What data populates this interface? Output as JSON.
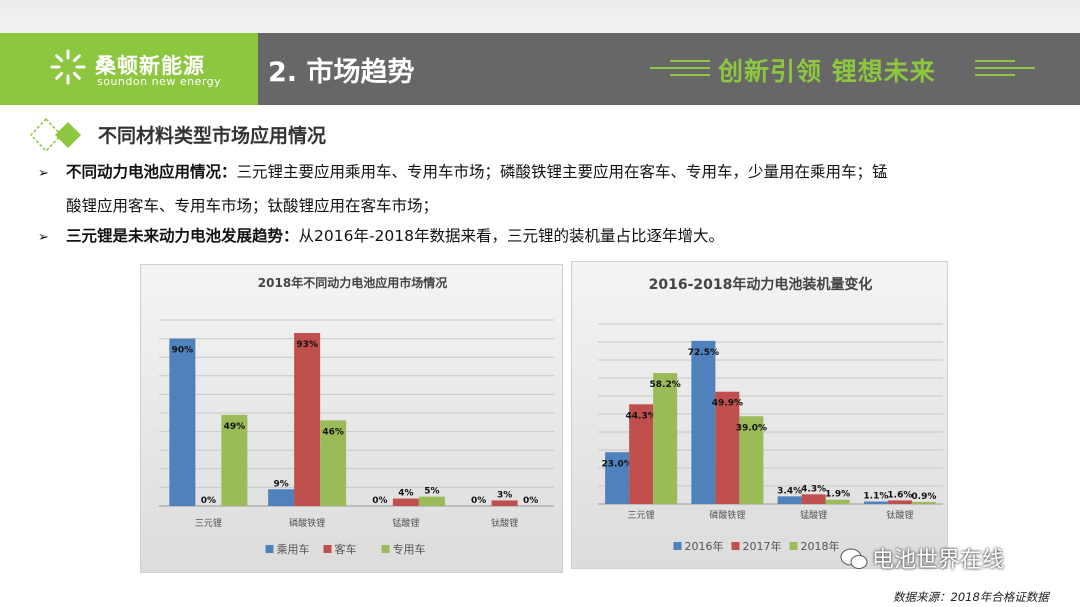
{
  "header": {
    "brand_cn": "桑顿新能源",
    "brand_en": "soundon new energy",
    "section_title": "2. 市场趋势",
    "slogan": "创新引领  锂想未来"
  },
  "subtitle": "不同材料类型市场应用情况",
  "bullets": [
    {
      "bold": "不同动力电池应用情况：",
      "text1": "三元锂主要应用乘用车、专用车市场；磷酸铁锂主要应用在客车、专用车，少量用在乘用车；锰",
      "text2": "酸锂应用客车、专用车市场；钛酸锂应用在客车市场；"
    },
    {
      "bold": "三元锂是未来动力电池发展趋势：",
      "text1": "从2016年-2018年数据来看，三元锂的装机量占比逐年增大。"
    }
  ],
  "chart_data": [
    {
      "type": "bar",
      "title": "2018年不同动力电池应用市场情况",
      "categories": [
        "三元锂",
        "磷酸铁锂",
        "锰酸锂",
        "钛酸锂"
      ],
      "series": [
        {
          "name": "乘用车",
          "values": [
            90,
            9,
            0,
            0
          ],
          "labels": [
            "90%",
            "9%",
            "0%",
            "0%"
          ],
          "color": "#4f81bd"
        },
        {
          "name": "客车",
          "values": [
            0,
            93,
            4,
            3
          ],
          "labels": [
            "0%",
            "93%",
            "4%",
            "3%"
          ],
          "color": "#c0504d"
        },
        {
          "name": "专用车",
          "values": [
            49,
            46,
            5,
            0
          ],
          "labels": [
            "49%",
            "46%",
            "5%",
            "0%"
          ],
          "color": "#9bbb59"
        }
      ],
      "ylim": [
        0,
        100
      ],
      "grid": true,
      "legend": "bottom"
    },
    {
      "type": "bar",
      "title": "2016-2018年动力电池装机量变化",
      "categories": [
        "三元锂",
        "磷酸铁锂",
        "锰酸锂",
        "钛酸锂"
      ],
      "series": [
        {
          "name": "2016年",
          "values": [
            23.0,
            72.5,
            3.4,
            1.1
          ],
          "labels": [
            "23.0%",
            "72.5%",
            "3.4%",
            "1.1%"
          ],
          "color": "#4f81bd"
        },
        {
          "name": "2017年",
          "values": [
            44.3,
            49.9,
            4.3,
            1.6
          ],
          "labels": [
            "44.3%",
            "49.9%",
            "4.3%",
            "1.6%"
          ],
          "color": "#c0504d"
        },
        {
          "name": "2018年",
          "values": [
            58.2,
            39.0,
            1.9,
            0.9
          ],
          "labels": [
            "58.2%",
            "39.0%",
            "1.9%",
            "0.9%"
          ],
          "color": "#9bbb59"
        }
      ],
      "ylim": [
        0,
        80
      ],
      "grid": true,
      "legend": "bottom"
    }
  ],
  "watermark": "电池世界在线",
  "source_note": "数据来源：2018年合格证数据"
}
